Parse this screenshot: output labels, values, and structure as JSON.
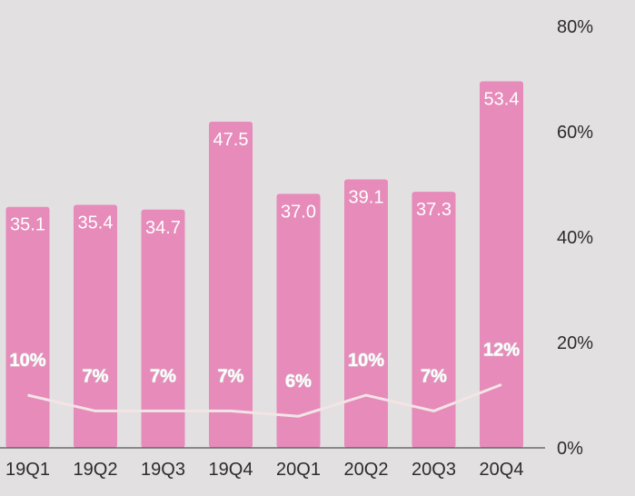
{
  "chart_data": {
    "type": "bar",
    "categories": [
      "19Q1",
      "19Q2",
      "19Q3",
      "19Q4",
      "20Q1",
      "20Q2",
      "20Q3",
      "20Q4"
    ],
    "series": [
      {
        "type": "bar",
        "values": [
          35.1,
          35.4,
          34.7,
          47.5,
          37.0,
          39.1,
          37.3,
          53.4
        ],
        "labels": [
          "35.1",
          "35.4",
          "34.7",
          "47.5",
          "37.0",
          "39.1",
          "37.3",
          "53.4"
        ],
        "color": "#e68bba"
      },
      {
        "type": "line",
        "values": [
          10,
          7,
          7,
          7,
          6,
          10,
          7,
          12
        ],
        "labels": [
          "10%",
          "7%",
          "7%",
          "7%",
          "6%",
          "10%",
          "7%",
          "12%"
        ],
        "color": "#f3e4e6"
      }
    ],
    "y_right_axis": {
      "ticks": [
        "0%",
        "20%",
        "40%",
        "60%",
        "80%"
      ],
      "tick_values": [
        0,
        20,
        40,
        60,
        80
      ],
      "ylim": [
        0,
        80
      ]
    },
    "bar_axis_max": 61.4,
    "grid": false,
    "legend": "none"
  }
}
